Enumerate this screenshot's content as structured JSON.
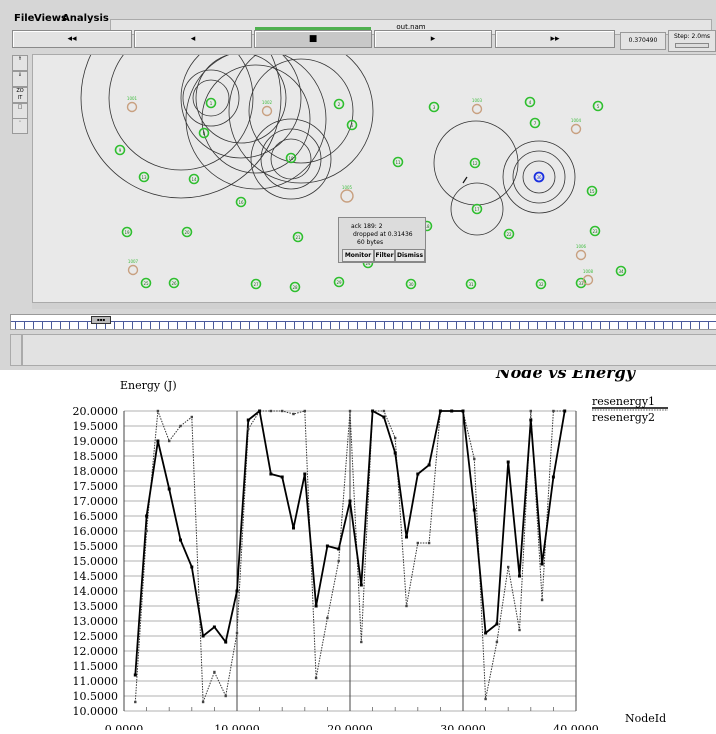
{
  "menu": {
    "file": "File",
    "views": "Views",
    "analysis": "Analysis"
  },
  "window": {
    "title": "out.nam"
  },
  "controls": {
    "rewind": "◂◂",
    "back": "◂",
    "stop": "■",
    "play": "▸",
    "fastforward": "▸▸",
    "time": "0.370490",
    "step": "Step: 2.0ms"
  },
  "tools": {
    "zoom_label": "ZO\nIT"
  },
  "popup": {
    "line1": "ack 189: 2",
    "line2": "dropped at 0.31436",
    "line3": "60 bytes",
    "monitor": "Monitor",
    "filter": "Filter",
    "dismiss": "Dismiss"
  },
  "colors": {
    "node": "#2fbf2f",
    "special_node": "#c8a080",
    "selected_node": "#1a2fe0"
  },
  "nodes": {
    "green": [
      "1",
      "2",
      "3",
      "4",
      "5",
      "6",
      "7",
      "8",
      "9",
      "10",
      "11",
      "12",
      "13",
      "14",
      "15",
      "16",
      "17",
      "18",
      "19",
      "20",
      "21",
      "22",
      "23",
      "24",
      "25",
      "26",
      "27",
      "28",
      "29",
      "30",
      "31",
      "32",
      "33",
      "34",
      "35"
    ],
    "special": [
      "1001",
      "1002",
      "1003",
      "1004",
      "1005",
      "1006",
      "1007",
      "1008"
    ],
    "selected": "36"
  },
  "chart_data": {
    "type": "line",
    "title": "Node vs Energy",
    "ylabel": "Energy (J)",
    "xlabel": "NodeId",
    "xlim": [
      0,
      40
    ],
    "ylim": [
      10,
      20
    ],
    "x_ticks": [
      "0.0000",
      "10.0000",
      "20.0000",
      "30.0000",
      "40.0000"
    ],
    "y_ticks": [
      "10.0000",
      "10.5000",
      "11.0000",
      "11.5000",
      "12.0000",
      "12.5000",
      "13.0000",
      "13.5000",
      "14.0000",
      "14.5000",
      "15.0000",
      "15.5000",
      "16.0000",
      "16.5000",
      "17.0000",
      "17.5000",
      "18.0000",
      "18.5000",
      "19.0000",
      "19.5000",
      "20.0000"
    ],
    "legend_position": "top-right",
    "series": [
      {
        "name": "resenergy1",
        "x": [
          1,
          2,
          3,
          4,
          5,
          6,
          7,
          8,
          9,
          10,
          11,
          12,
          13,
          14,
          15,
          16,
          17,
          18,
          19,
          20,
          21,
          22,
          23,
          24,
          25,
          26,
          27,
          28,
          29,
          30,
          31,
          32,
          33,
          34,
          35,
          36,
          37,
          38,
          39
        ],
        "values": [
          11.2,
          16.5,
          19.0,
          17.4,
          15.7,
          14.8,
          12.5,
          12.8,
          12.3,
          14.0,
          19.7,
          20.0,
          17.9,
          17.8,
          16.1,
          17.9,
          13.5,
          15.5,
          15.4,
          17.0,
          14.2,
          20.0,
          19.8,
          18.6,
          15.8,
          17.9,
          18.2,
          20.0,
          20.0,
          20.0,
          16.7,
          12.6,
          12.9,
          18.3,
          14.5,
          19.7,
          14.9,
          17.8,
          20.0
        ]
      },
      {
        "name": "resenergy2",
        "x": [
          1,
          2,
          3,
          4,
          5,
          6,
          7,
          8,
          9,
          10,
          11,
          12,
          13,
          14,
          15,
          16,
          17,
          18,
          19,
          20,
          21,
          22,
          23,
          24,
          25,
          26,
          27,
          28,
          29,
          30,
          31,
          32,
          33,
          34,
          35,
          36,
          37,
          38,
          39
        ],
        "values": [
          10.3,
          16.0,
          20.0,
          19.0,
          19.5,
          19.8,
          10.3,
          11.3,
          10.5,
          12.6,
          19.4,
          20.0,
          20.0,
          20.0,
          19.9,
          20.0,
          11.1,
          13.1,
          15.0,
          20.0,
          12.3,
          20.0,
          20.0,
          19.1,
          13.5,
          15.6,
          15.6,
          20.0,
          20.0,
          20.0,
          18.4,
          10.4,
          12.3,
          14.8,
          12.7,
          20.0,
          13.7,
          20.0,
          20.0
        ]
      }
    ]
  }
}
